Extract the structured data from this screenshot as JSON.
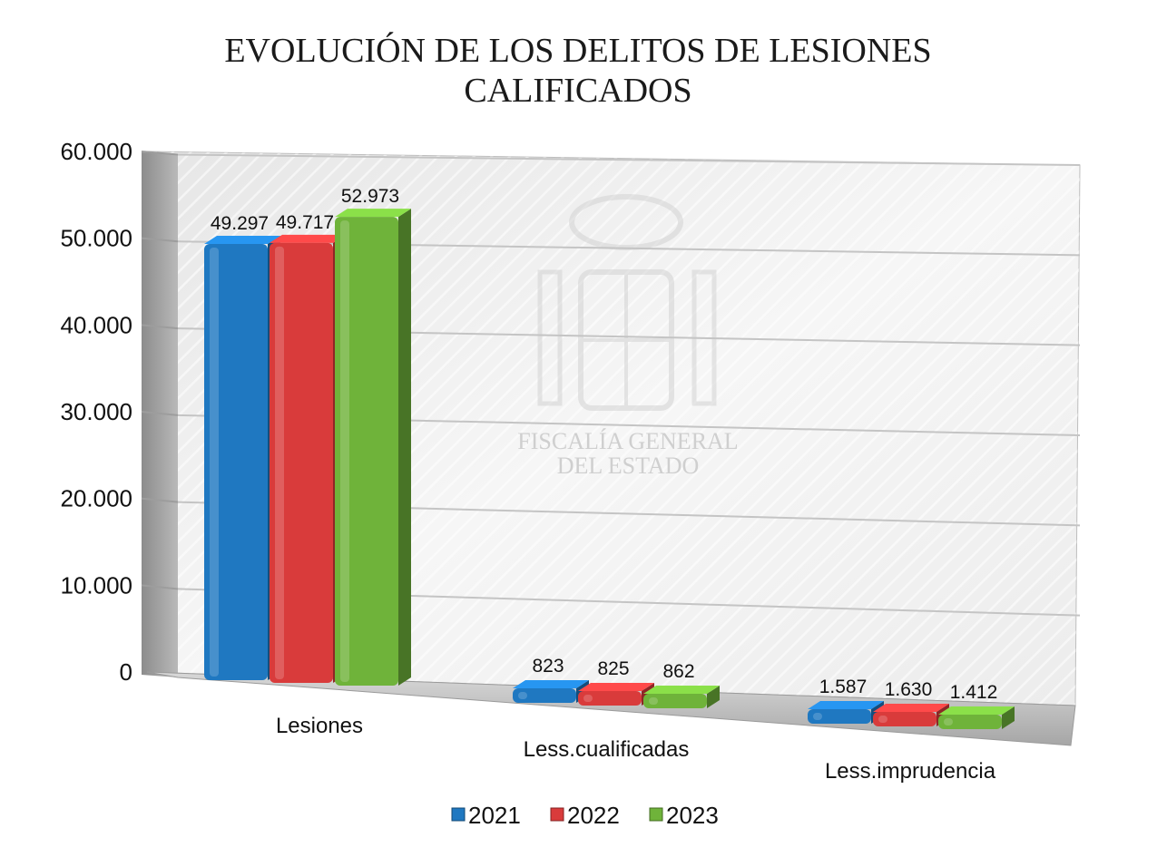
{
  "chart_data": {
    "type": "bar",
    "title": [
      "EVOLUCIÓN DE LOS DELITOS DE LESIONES",
      "CALIFICADOS"
    ],
    "categories": [
      "Lesiones",
      "Less.cualificadas",
      "Less.imprudencia"
    ],
    "series": [
      {
        "name": "2021",
        "color": "#1f78c1",
        "values": [
          49297,
          823,
          1587
        ],
        "labels": [
          "49.297",
          "823",
          "1.587"
        ]
      },
      {
        "name": "2022",
        "color": "#d93b3b",
        "values": [
          49717,
          825,
          1630
        ],
        "labels": [
          "49.717",
          "825",
          "1.630"
        ]
      },
      {
        "name": "2023",
        "color": "#6fb33a",
        "values": [
          52973,
          862,
          1412
        ],
        "labels": [
          "52.973",
          "862",
          "1.412"
        ]
      }
    ],
    "y_ticks": [
      "0",
      "10.000",
      "20.000",
      "30.000",
      "40.000",
      "50.000",
      "60.000"
    ],
    "ylim": [
      0,
      60000
    ],
    "grid": true,
    "legend_position": "bottom",
    "watermark": {
      "lines": [
        "FISCALÍA GENERAL",
        "DEL ESTADO"
      ],
      "icon": "coat-of-arms-icon"
    }
  }
}
